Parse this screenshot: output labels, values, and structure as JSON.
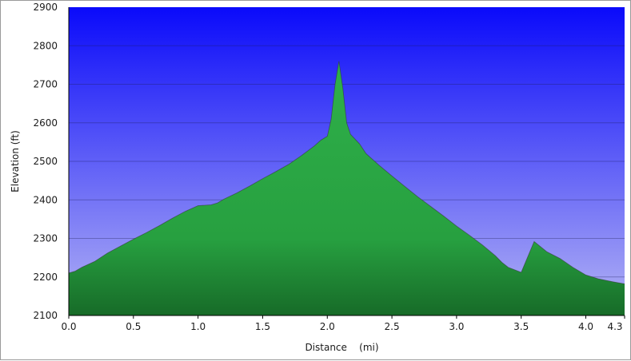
{
  "chart_data": {
    "type": "area",
    "title": "",
    "xlabel": "Distance    (mi)",
    "ylabel": "Elevation (ft)",
    "xlim": [
      0,
      4.3
    ],
    "ylim": [
      2100,
      2900
    ],
    "x_ticks": [
      "0.0",
      "0.5",
      "1.0",
      "1.5",
      "2.0",
      "2.5",
      "3.0",
      "3.5",
      "4.0",
      "4.3"
    ],
    "y_ticks": [
      "2100",
      "2200",
      "2300",
      "2400",
      "2500",
      "2600",
      "2700",
      "2800",
      "2900"
    ],
    "grid": true,
    "series": [
      {
        "x": [
          0.0,
          0.05,
          0.1,
          0.2,
          0.3,
          0.4,
          0.5,
          0.6,
          0.7,
          0.8,
          0.9,
          1.0,
          1.1,
          1.15,
          1.2,
          1.3,
          1.4,
          1.5,
          1.6,
          1.7,
          1.8,
          1.9,
          1.95,
          2.0,
          2.03,
          2.06,
          2.09,
          2.12,
          2.15,
          2.18,
          2.25,
          2.3,
          2.4,
          2.5,
          2.6,
          2.7,
          2.8,
          2.9,
          3.0,
          3.1,
          3.2,
          3.3,
          3.35,
          3.4,
          3.5,
          3.6,
          3.7,
          3.8,
          3.9,
          4.0,
          4.1,
          4.2,
          4.25,
          4.3
        ],
        "y": [
          2210,
          2215,
          2225,
          2240,
          2262,
          2280,
          2298,
          2315,
          2333,
          2352,
          2370,
          2385,
          2387,
          2392,
          2402,
          2418,
          2436,
          2455,
          2473,
          2492,
          2515,
          2540,
          2555,
          2565,
          2610,
          2700,
          2760,
          2690,
          2600,
          2570,
          2545,
          2520,
          2490,
          2462,
          2435,
          2408,
          2383,
          2358,
          2332,
          2308,
          2283,
          2255,
          2238,
          2225,
          2212,
          2292,
          2265,
          2248,
          2225,
          2205,
          2195,
          2188,
          2185,
          2182
        ]
      }
    ],
    "colors": {
      "sky_top": "#0a0afa",
      "sky_bottom": "#b4b4f4",
      "fill_light": "#2fb04a",
      "fill_dark": "#176b28",
      "outline": "#333333"
    }
  }
}
